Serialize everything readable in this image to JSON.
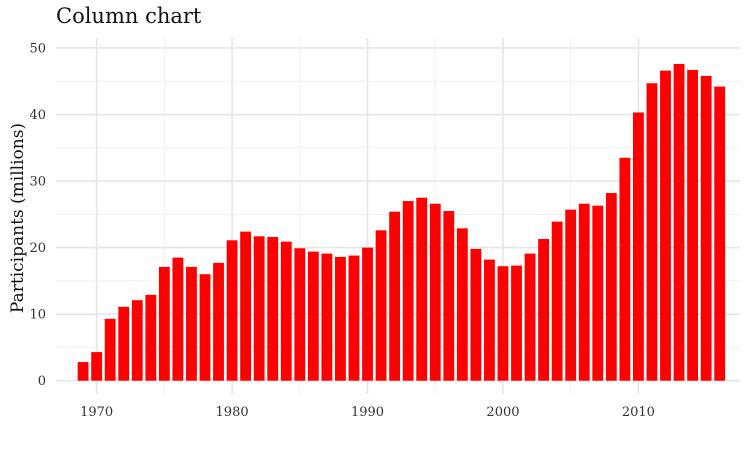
{
  "chart_data": {
    "type": "bar",
    "title": "Column chart",
    "xlabel": "",
    "ylabel": "Participants (millions)",
    "bar_color": "#ff0000",
    "grid": true,
    "xlim": [
      1967,
      2017.5
    ],
    "ylim": [
      -2,
      51.5
    ],
    "x_ticks": [
      1970,
      1980,
      1990,
      2000,
      2010
    ],
    "y_ticks": [
      0,
      10,
      20,
      30,
      40,
      50
    ],
    "x": [
      1969,
      1970,
      1971,
      1972,
      1973,
      1974,
      1975,
      1976,
      1977,
      1978,
      1979,
      1980,
      1981,
      1982,
      1983,
      1984,
      1985,
      1986,
      1987,
      1988,
      1989,
      1990,
      1991,
      1992,
      1993,
      1994,
      1995,
      1996,
      1997,
      1998,
      1999,
      2000,
      2001,
      2002,
      2003,
      2004,
      2005,
      2006,
      2007,
      2008,
      2009,
      2010,
      2011,
      2012,
      2013,
      2014,
      2015,
      2016
    ],
    "values": [
      2.8,
      4.3,
      9.3,
      11.1,
      12.1,
      12.9,
      17.1,
      18.5,
      17.1,
      16.0,
      17.7,
      21.1,
      22.4,
      21.7,
      21.6,
      20.9,
      19.9,
      19.4,
      19.1,
      18.6,
      18.8,
      20.0,
      22.6,
      25.4,
      27.0,
      27.5,
      26.6,
      25.5,
      22.9,
      19.8,
      18.2,
      17.2,
      17.3,
      19.1,
      21.3,
      23.9,
      25.7,
      26.6,
      26.3,
      28.2,
      33.5,
      40.3,
      44.7,
      46.6,
      47.6,
      46.7,
      45.8,
      44.2
    ]
  }
}
